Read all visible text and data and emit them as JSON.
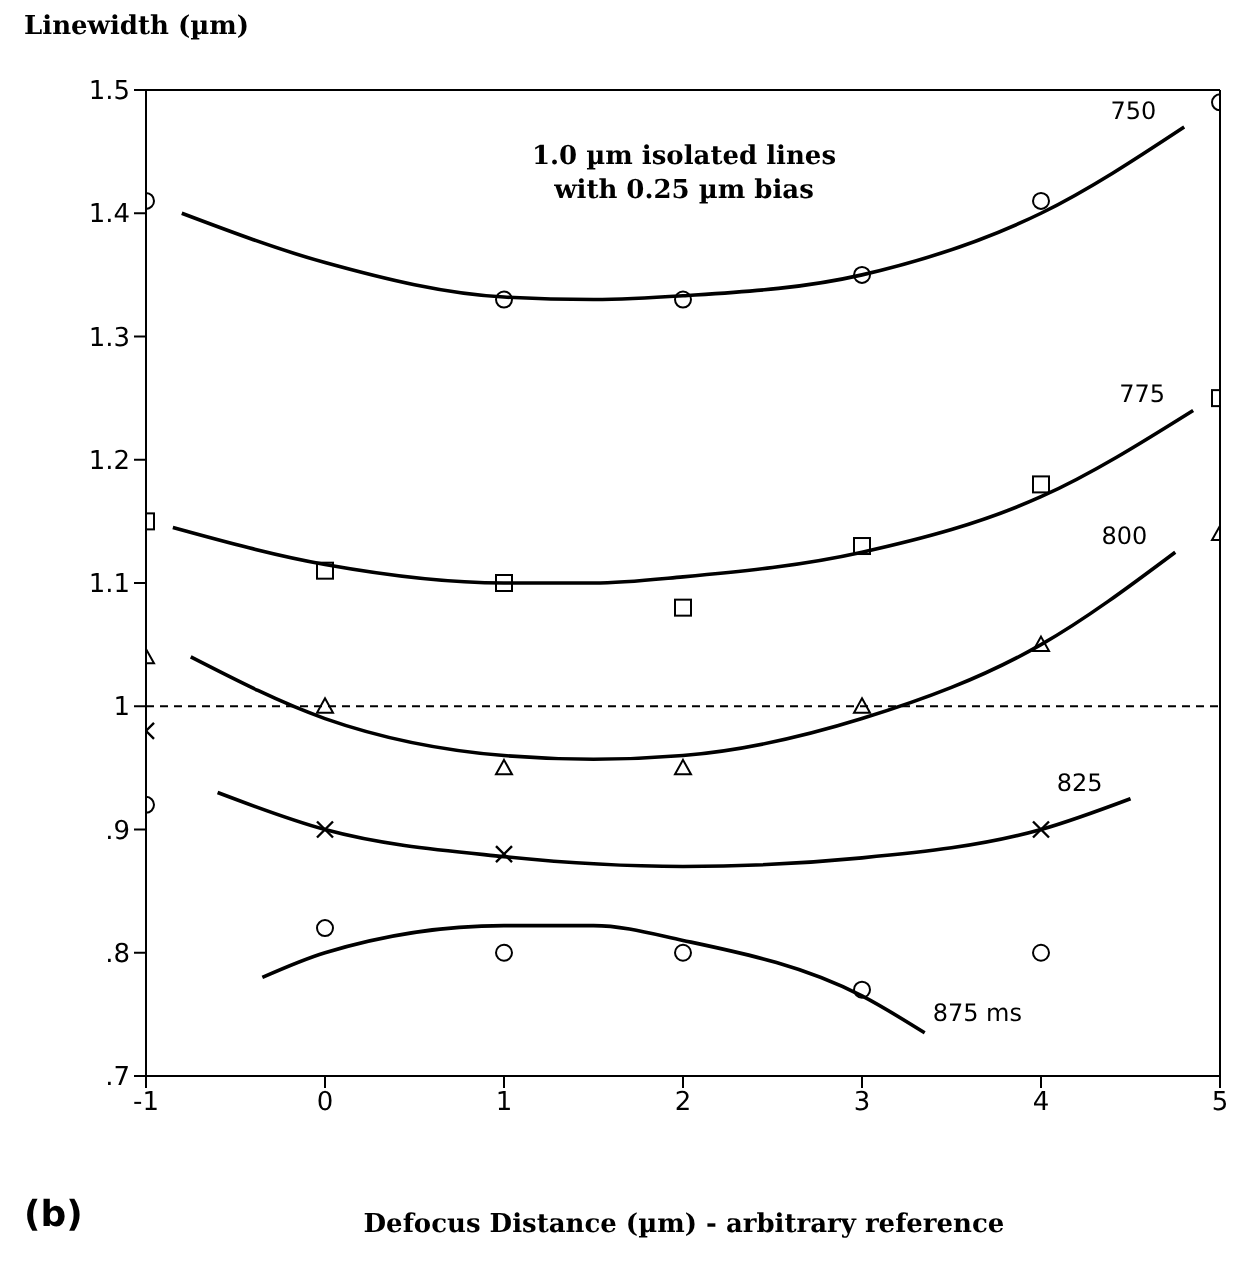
{
  "chart_data": {
    "type": "scatter",
    "xlabel": "Defocus Distance (µm) - arbitrary reference",
    "ylabel": "Linewidth (µm)",
    "annotations": [
      "1.0 µm isolated lines\nwith 0.25 µm bias",
      "(b)"
    ],
    "xlim": [
      -1,
      5
    ],
    "xticks": [
      -1,
      0,
      1,
      2,
      3,
      4,
      5
    ],
    "ylim": [
      0.7,
      1.5
    ],
    "yticks": [
      {
        "value": 0.7,
        "label": ".7"
      },
      {
        "value": 0.8,
        "label": ".8"
      },
      {
        "value": 0.9,
        "label": ".9"
      },
      1,
      1.1,
      1.2,
      1.3,
      1.4,
      1.5
    ],
    "grid": false,
    "ref_lines": [
      {
        "axis": "y",
        "value": 1,
        "line_style": "dashed",
        "color": "#000000"
      }
    ],
    "series": [
      {
        "marker": "circle",
        "color": "#000000",
        "x": [
          -1,
          1,
          2,
          3,
          4,
          5
        ],
        "values": [
          1.41,
          1.33,
          1.33,
          1.35,
          1.41,
          1.49
        ]
      },
      {
        "marker": "square",
        "color": "#000000",
        "x": [
          -1,
          0,
          1,
          2,
          3,
          4,
          5
        ],
        "values": [
          1.15,
          1.11,
          1.1,
          1.08,
          1.13,
          1.18,
          1.25
        ]
      },
      {
        "marker": "triangle",
        "color": "#000000",
        "x": [
          -1,
          0,
          1,
          2,
          3,
          4,
          5
        ],
        "values": [
          1.04,
          1.0,
          0.95,
          0.95,
          1.0,
          1.05,
          1.14
        ]
      },
      {
        "marker": "cross",
        "color": "#000000",
        "x": [
          -1,
          0,
          1,
          4
        ],
        "values": [
          0.98,
          0.9,
          0.88,
          0.9
        ]
      },
      {
        "marker": "circle",
        "color": "#000000",
        "x": [
          -1,
          0,
          1,
          2,
          3,
          4
        ],
        "values": [
          0.92,
          0.82,
          0.8,
          0.8,
          0.77,
          0.8
        ]
      },
      {
        "type": "line",
        "name": "750",
        "marker": "none",
        "color": "#000000",
        "x": [
          -0.8,
          0,
          1,
          1.5,
          2,
          3,
          4,
          4.8
        ],
        "values": [
          1.4,
          1.36,
          1.332,
          1.33,
          1.333,
          1.35,
          1.4,
          1.47
        ]
      },
      {
        "type": "line",
        "name": "775",
        "marker": "none",
        "color": "#000000",
        "x": [
          -0.85,
          0,
          1,
          1.5,
          2,
          3,
          4,
          4.85
        ],
        "values": [
          1.145,
          1.115,
          1.1,
          1.1,
          1.105,
          1.125,
          1.17,
          1.24
        ]
      },
      {
        "type": "line",
        "name": "800",
        "marker": "none",
        "color": "#000000",
        "x": [
          -0.75,
          0,
          1,
          1.5,
          2,
          3,
          4,
          4.75
        ],
        "values": [
          1.04,
          0.99,
          0.96,
          0.957,
          0.96,
          0.99,
          1.05,
          1.125
        ]
      },
      {
        "type": "line",
        "name": "825",
        "marker": "none",
        "color": "#000000",
        "x": [
          -0.6,
          0,
          1,
          2,
          3,
          4,
          4.5
        ],
        "values": [
          0.93,
          0.9,
          0.878,
          0.87,
          0.877,
          0.9,
          0.925
        ]
      },
      {
        "type": "line",
        "name": "875 ms",
        "marker": "none",
        "color": "#000000",
        "x": [
          -0.35,
          0,
          1,
          1.5,
          2,
          3,
          3.35
        ],
        "values": [
          0.78,
          0.8,
          0.822,
          0.822,
          0.81,
          0.765,
          0.735
        ]
      }
    ]
  }
}
